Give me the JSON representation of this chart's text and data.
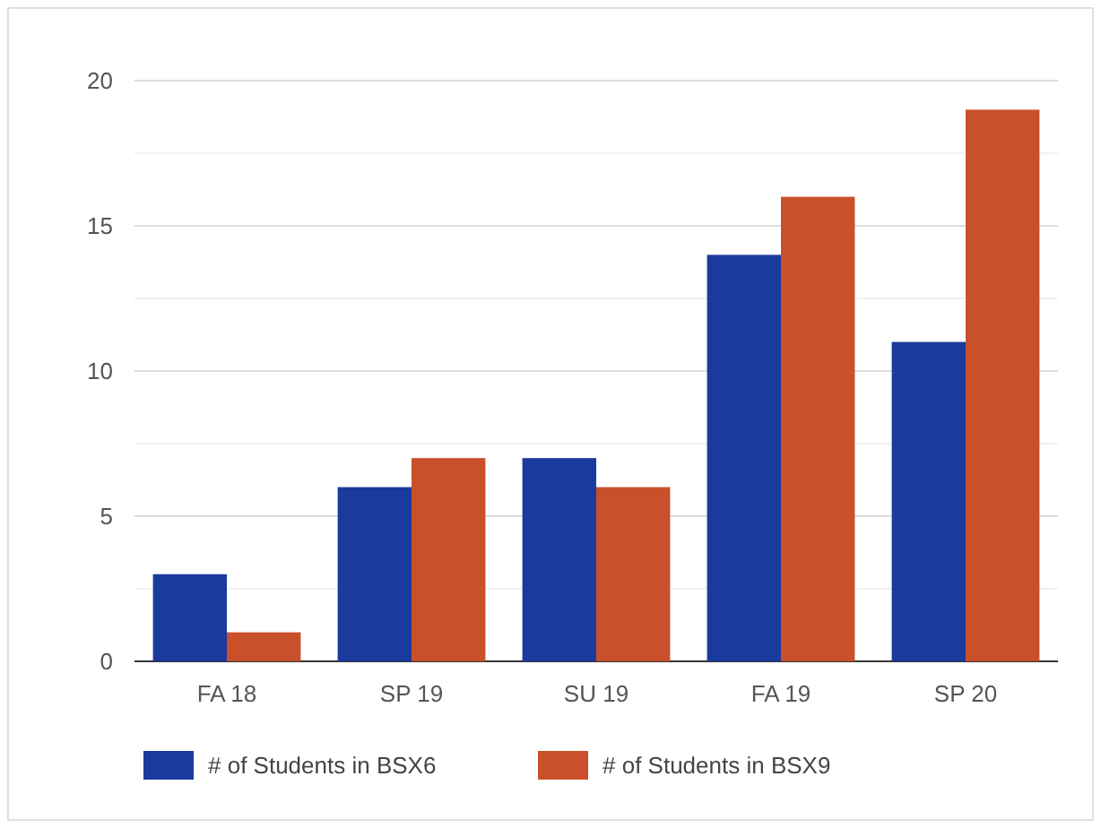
{
  "chart_data": {
    "type": "bar",
    "categories": [
      "FA 18",
      "SP 19",
      "SU 19",
      "FA 19",
      "SP 20"
    ],
    "series": [
      {
        "name": "# of Students in BSX6",
        "color": "#1a3a9e",
        "values": [
          3,
          6,
          7,
          14,
          11
        ]
      },
      {
        "name": "# of Students in BSX9",
        "color": "#c9502a",
        "values": [
          1,
          7,
          6,
          16,
          19
        ]
      }
    ],
    "ylim": [
      0,
      20
    ],
    "yticks": [
      0,
      {
        "value": 2.5,
        "label": null
      },
      5,
      {
        "value": 7.5,
        "label": null
      },
      10,
      {
        "value": 12.5,
        "label": null
      },
      15,
      {
        "value": 17.5,
        "label": null
      },
      20
    ],
    "grid": "y",
    "legend": "bottom"
  }
}
